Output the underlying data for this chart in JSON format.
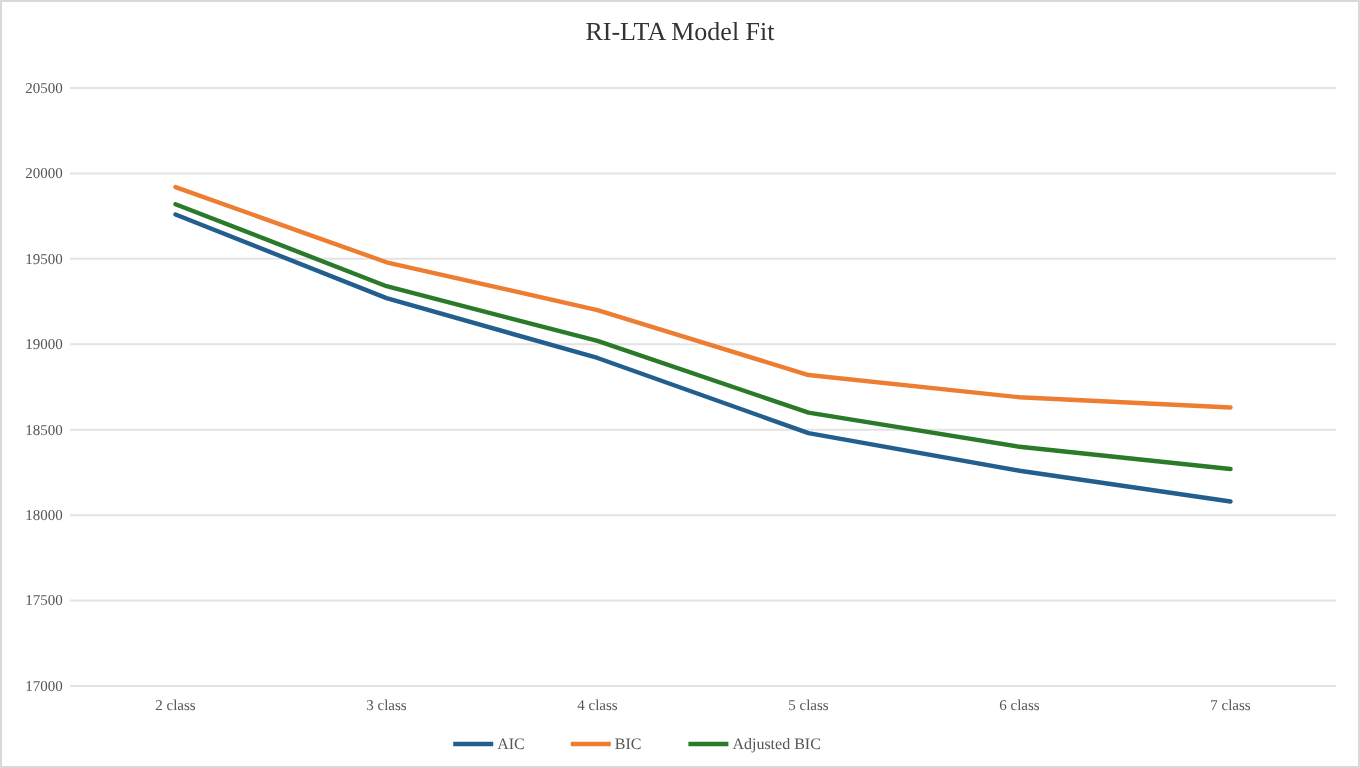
{
  "chart_data": {
    "type": "line",
    "title": "RI-LTA Model Fit",
    "categories": [
      "2 class",
      "3 class",
      "4 class",
      "5 class",
      "6 class",
      "7 class"
    ],
    "series": [
      {
        "name": "AIC",
        "color": "#235f8e",
        "values": [
          19760,
          19270,
          18920,
          18480,
          18260,
          18080
        ]
      },
      {
        "name": "BIC",
        "color": "#ed7d31",
        "values": [
          19920,
          19480,
          19200,
          18820,
          18690,
          18630
        ]
      },
      {
        "name": "Adjusted BIC",
        "color": "#2a7a2a",
        "values": [
          19820,
          19340,
          19020,
          18600,
          18400,
          18270
        ]
      }
    ],
    "ylim": [
      17000,
      20500
    ],
    "yticks": [
      17000,
      17500,
      18000,
      18500,
      19000,
      19500,
      20000,
      20500
    ],
    "grid": "y",
    "legend": "bottom",
    "marker": "none",
    "line_style": "solid"
  }
}
